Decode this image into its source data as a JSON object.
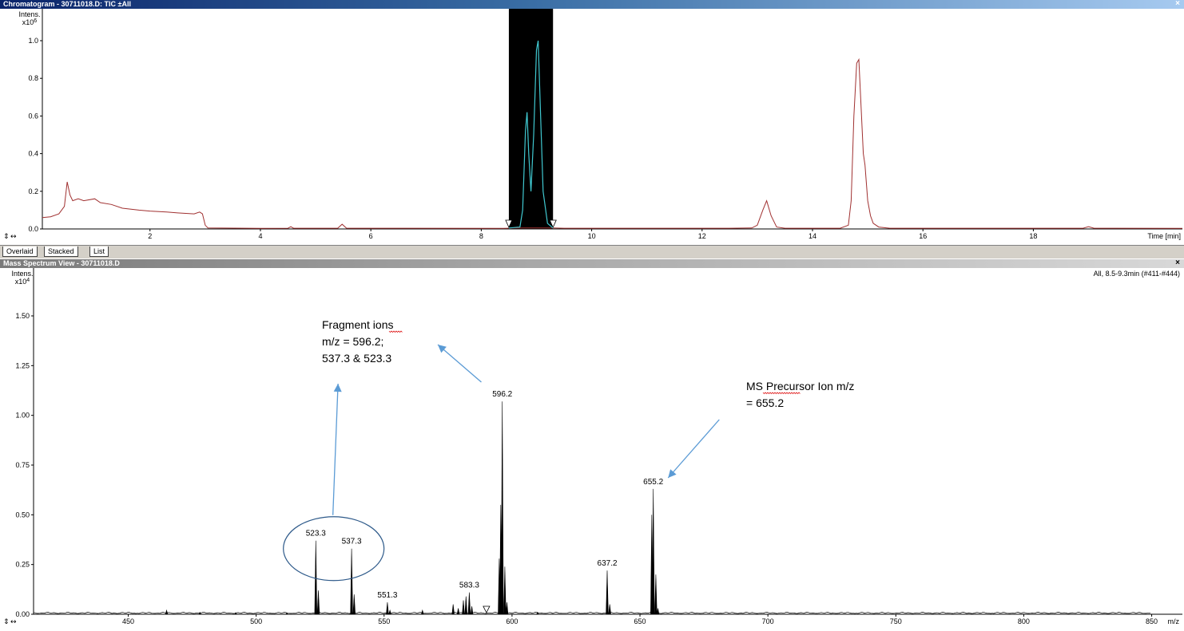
{
  "chromatogram_window": {
    "title": "Chromatogram - 30711018.D: TIC ±All",
    "close_glyph": "×",
    "tabs": [
      "Overlaid",
      "Stacked",
      "List"
    ]
  },
  "spectrum_window": {
    "title": "Mass Spectrum View - 30711018.D",
    "close_glyph": "×",
    "info": "All, 8.5-9.3min (#411-#444)"
  },
  "controls": {
    "zoom_glyph": "⇕",
    "scroll_glyph": "↔"
  },
  "colors": {
    "chrom_trace": "#a03030",
    "highlight_trace": "#40c8d0",
    "spectrum_trace": "#000000",
    "arrow": "#5b9bd5",
    "selection": "#000000"
  },
  "chart_data": [
    {
      "type": "line",
      "name_in_ui": "TIC chromatogram",
      "ylabel": "Intens.",
      "yunit": "x10^6",
      "xlabel": "Time [min]",
      "xlim": [
        0.05,
        20.7
      ],
      "ylim": [
        0,
        1.0
      ],
      "xticks": [
        2,
        4,
        6,
        8,
        10,
        12,
        14,
        16,
        18
      ],
      "yticks": [
        0.0,
        0.2,
        0.4,
        0.6,
        0.8,
        1.0
      ],
      "ytick_labels": [
        "0.0",
        "0.2",
        "0.4",
        "0.6",
        "0.8",
        "1.0"
      ],
      "selection_range": [
        8.5,
        9.3
      ],
      "series": [
        {
          "points": [
            [
              0.05,
              0.06
            ],
            [
              0.2,
              0.065
            ],
            [
              0.35,
              0.08
            ],
            [
              0.45,
              0.12
            ],
            [
              0.5,
              0.25
            ],
            [
              0.55,
              0.18
            ],
            [
              0.6,
              0.15
            ],
            [
              0.7,
              0.16
            ],
            [
              0.8,
              0.15
            ],
            [
              1.0,
              0.16
            ],
            [
              1.1,
              0.14
            ],
            [
              1.3,
              0.13
            ],
            [
              1.5,
              0.11
            ],
            [
              1.8,
              0.1
            ],
            [
              2.0,
              0.095
            ],
            [
              2.3,
              0.09
            ],
            [
              2.5,
              0.085
            ],
            [
              2.8,
              0.08
            ],
            [
              2.9,
              0.09
            ],
            [
              2.95,
              0.08
            ],
            [
              3.0,
              0.02
            ],
            [
              3.05,
              0.005
            ],
            [
              4.0,
              0.003
            ],
            [
              4.5,
              0.004
            ],
            [
              4.55,
              0.012
            ],
            [
              4.6,
              0.004
            ],
            [
              5.4,
              0.004
            ],
            [
              5.48,
              0.025
            ],
            [
              5.56,
              0.004
            ],
            [
              8.4,
              0.003
            ],
            [
              8.6,
              0.005
            ],
            [
              9.3,
              0.005
            ],
            [
              9.5,
              0.004
            ],
            [
              12.5,
              0.004
            ],
            [
              12.9,
              0.005
            ],
            [
              13.0,
              0.02
            ],
            [
              13.1,
              0.1
            ],
            [
              13.17,
              0.15
            ],
            [
              13.25,
              0.07
            ],
            [
              13.35,
              0.01
            ],
            [
              13.5,
              0.004
            ],
            [
              14.5,
              0.004
            ],
            [
              14.65,
              0.02
            ],
            [
              14.7,
              0.15
            ],
            [
              14.75,
              0.6
            ],
            [
              14.8,
              0.88
            ],
            [
              14.84,
              0.9
            ],
            [
              14.88,
              0.65
            ],
            [
              14.92,
              0.4
            ],
            [
              14.95,
              0.34
            ],
            [
              15.0,
              0.15
            ],
            [
              15.05,
              0.07
            ],
            [
              15.1,
              0.03
            ],
            [
              15.2,
              0.01
            ],
            [
              15.4,
              0.004
            ],
            [
              18.9,
              0.004
            ],
            [
              19.0,
              0.012
            ],
            [
              19.1,
              0.004
            ],
            [
              20.7,
              0.003
            ]
          ]
        },
        {
          "points": [
            [
              8.5,
              0.005
            ],
            [
              8.7,
              0.01
            ],
            [
              8.75,
              0.1
            ],
            [
              8.8,
              0.52
            ],
            [
              8.83,
              0.62
            ],
            [
              8.86,
              0.4
            ],
            [
              8.9,
              0.2
            ],
            [
              8.95,
              0.5
            ],
            [
              9.0,
              0.95
            ],
            [
              9.03,
              1.0
            ],
            [
              9.07,
              0.65
            ],
            [
              9.12,
              0.2
            ],
            [
              9.2,
              0.03
            ],
            [
              9.3,
              0.005
            ]
          ]
        }
      ]
    },
    {
      "type": "line",
      "name_in_ui": "Mass spectrum",
      "ylabel": "Intens.",
      "yunit": "x10^4",
      "xlabel": "m/z",
      "xlim": [
        413,
        862
      ],
      "ylim": [
        0,
        1.62
      ],
      "xticks": [
        450,
        500,
        550,
        600,
        650,
        700,
        750,
        800,
        850
      ],
      "yticks": [
        0.0,
        0.25,
        0.5,
        0.75,
        1.0,
        1.25,
        1.5
      ],
      "ytick_labels": [
        "0.00",
        "0.25",
        "0.50",
        "0.75",
        "1.00",
        "1.25",
        "1.50"
      ],
      "peaks": [
        [
          465,
          0.02
        ],
        [
          478,
          0.01
        ],
        [
          492,
          0.008
        ],
        [
          512,
          0.006
        ],
        [
          523.3,
          0.37
        ],
        [
          524.3,
          0.12
        ],
        [
          537.3,
          0.33
        ],
        [
          538.3,
          0.1
        ],
        [
          551.3,
          0.06
        ],
        [
          552.3,
          0.02
        ],
        [
          565,
          0.02
        ],
        [
          577,
          0.05
        ],
        [
          579,
          0.03
        ],
        [
          581,
          0.07
        ],
        [
          582,
          0.09
        ],
        [
          583.3,
          0.11
        ],
        [
          584.3,
          0.04
        ],
        [
          595,
          0.28
        ],
        [
          595.6,
          0.55
        ],
        [
          596.2,
          1.07
        ],
        [
          597.2,
          0.24
        ],
        [
          598,
          0.06
        ],
        [
          610,
          0.01
        ],
        [
          637.2,
          0.22
        ],
        [
          638.2,
          0.05
        ],
        [
          654.6,
          0.5
        ],
        [
          655.2,
          0.63
        ],
        [
          656.2,
          0.2
        ],
        [
          657,
          0.03
        ]
      ],
      "peak_labels": [
        {
          "x": 523.3,
          "y": 0.37,
          "text": "523.3"
        },
        {
          "x": 537.3,
          "y": 0.33,
          "text": "537.3"
        },
        {
          "x": 551.3,
          "y": 0.06,
          "text": "551.3"
        },
        {
          "x": 583.3,
          "y": 0.11,
          "text": "583.3"
        },
        {
          "x": 596.2,
          "y": 1.07,
          "text": "596.2"
        },
        {
          "x": 637.2,
          "y": 0.22,
          "text": "637.2"
        },
        {
          "x": 655.2,
          "y": 0.63,
          "text": "655.2"
        }
      ],
      "precursor_marker_mz": 590,
      "annotations": {
        "fragment": [
          "Fragment ions",
          "m/z = 596.2;",
          " 537.3 & 523.3"
        ],
        "precursor": [
          "MS Precursor Ion m/z",
          "= 655.2"
        ]
      }
    }
  ]
}
